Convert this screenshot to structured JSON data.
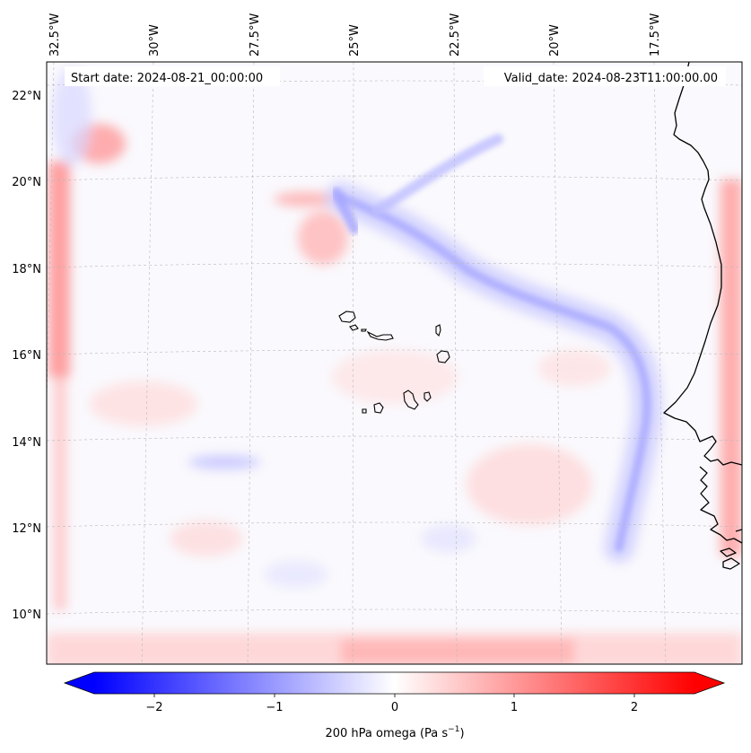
{
  "map": {
    "start_label": "Start date: 2024-08-21_00:00:00",
    "valid_label": "Valid_date: 2024-08-23T11:00:00.00",
    "lon_labels": [
      "32.5°W",
      "30°W",
      "27.5°W",
      "25°W",
      "22.5°W",
      "20°W",
      "17.5°W"
    ],
    "lat_labels": [
      "22°N",
      "20°N",
      "18°N",
      "16°N",
      "14°N",
      "12°N",
      "10°N"
    ],
    "field": "200 hPa omega",
    "colors": {
      "negative": "#0000ff",
      "neutral": "#ffffff",
      "positive": "#ff0000",
      "coastline": "#000000",
      "gridline": "#b9b9b9"
    }
  },
  "colorbar": {
    "ticks": [
      "−2",
      "−1",
      "0",
      "1",
      "2"
    ],
    "label_main": "200 hPa omega (Pa s",
    "label_sup": "−1",
    "label_tail": ")",
    "range": [
      -2.6,
      2.6
    ]
  }
}
